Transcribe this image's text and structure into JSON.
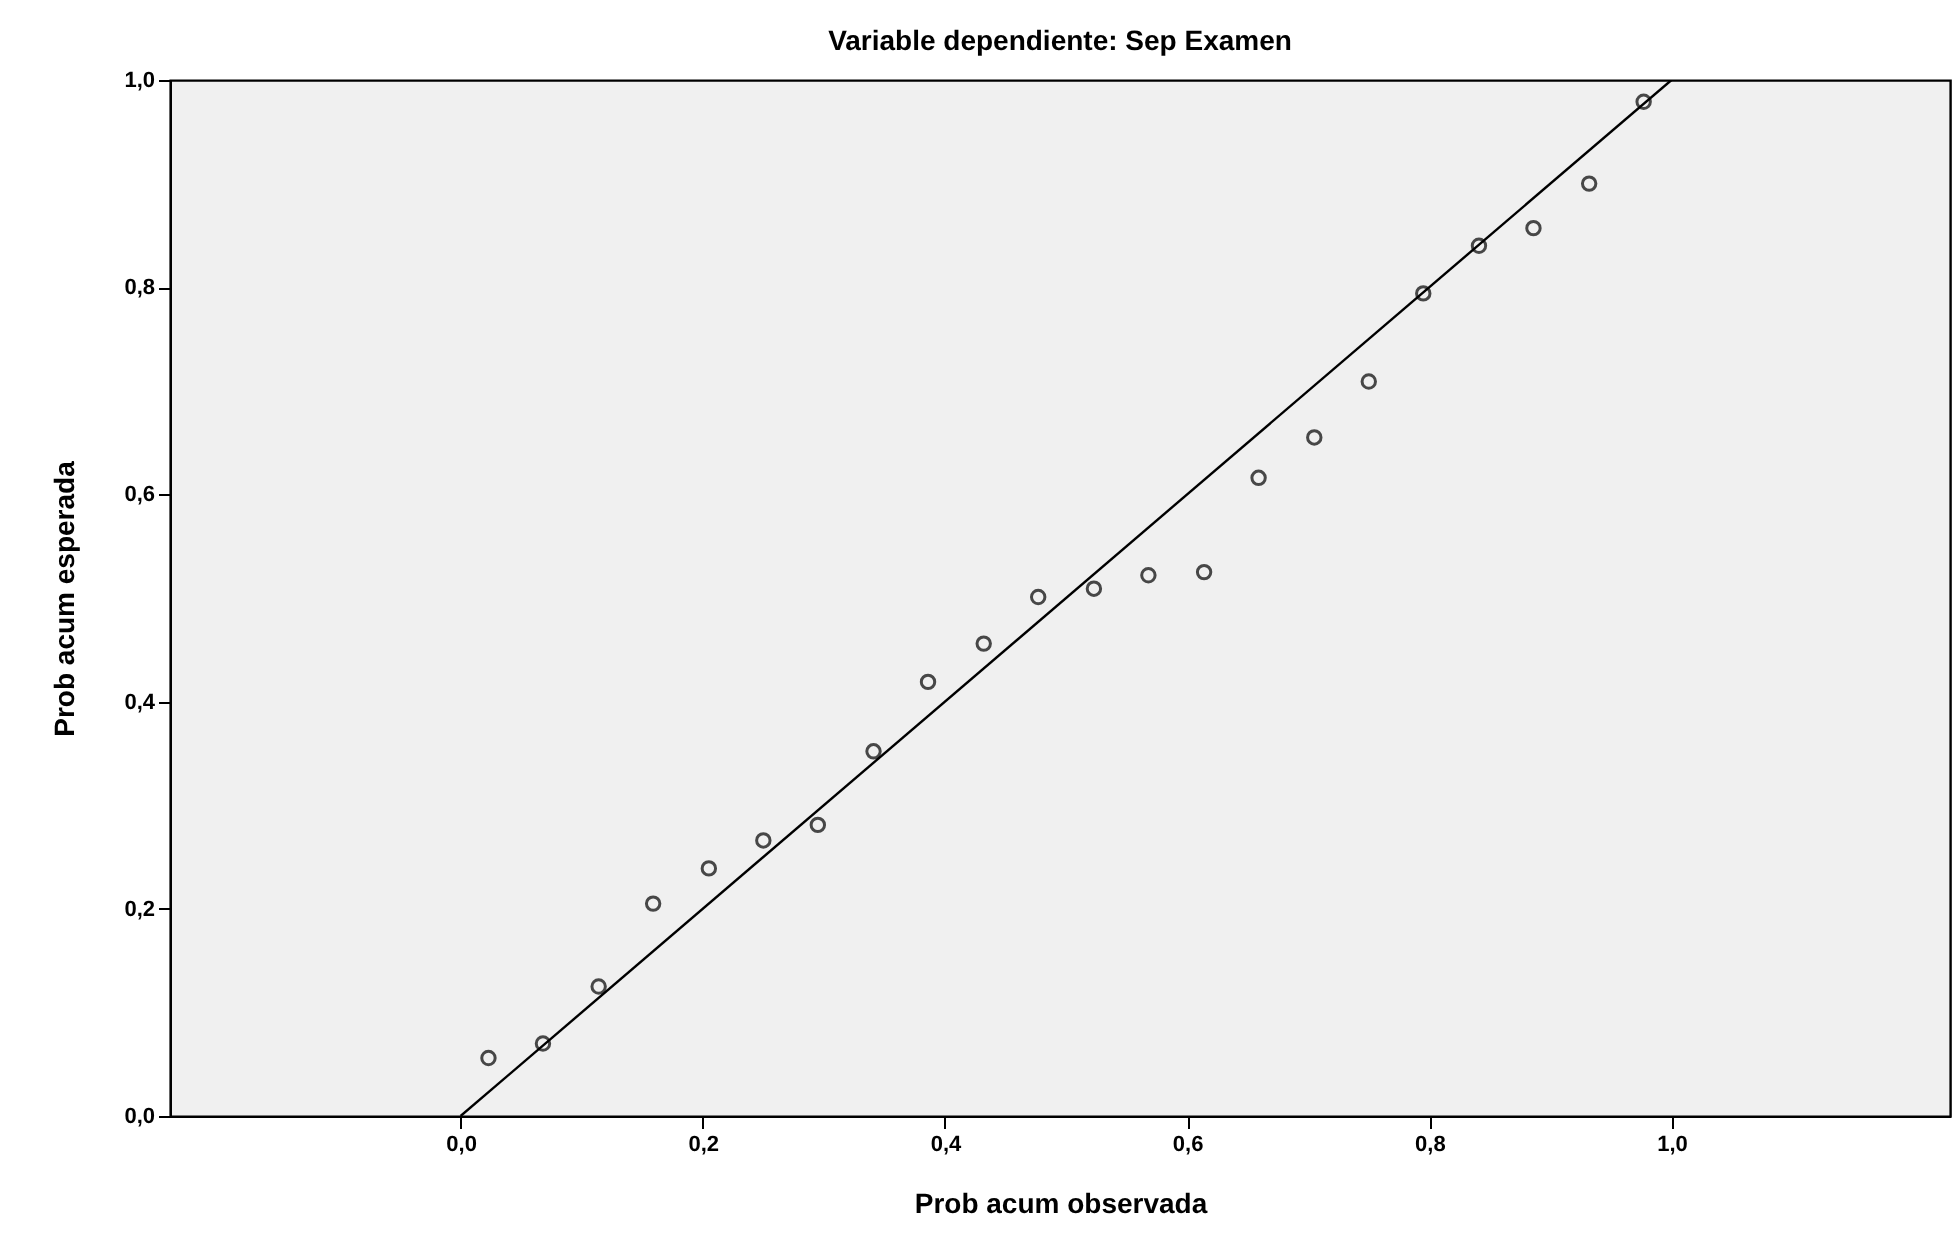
{
  "chart_data": {
    "type": "scatter",
    "title": "Variable dependiente: Sep Examen",
    "xlabel": "Prob acum observada",
    "ylabel": "Prob acum esperada",
    "x": [
      0.023,
      0.068,
      0.114,
      0.159,
      0.205,
      0.25,
      0.295,
      0.341,
      0.386,
      0.432,
      0.477,
      0.523,
      0.568,
      0.614,
      0.659,
      0.705,
      0.75,
      0.795,
      0.841,
      0.886,
      0.932,
      0.977
    ],
    "series": [
      {
        "color": "#000000",
        "marker": "circle",
        "values": [
          0.056,
          0.07,
          0.125,
          0.205,
          0.239,
          0.266,
          0.281,
          0.352,
          0.419,
          0.456,
          0.501,
          0.509,
          0.522,
          0.525,
          0.616,
          0.655,
          0.709,
          0.794,
          0.84,
          0.857,
          0.9,
          0.979
        ]
      },
      {
        "type": "line",
        "color": "#000000",
        "marker": "none",
        "x": [
          0,
          1
        ],
        "values": [
          0,
          1
        ]
      }
    ],
    "xlim": [
      -0.24,
      1.23
    ],
    "ylim": [
      0,
      1
    ],
    "xticks": [
      {
        "value": 0,
        "label": "0,0"
      },
      {
        "value": 0.2,
        "label": "0,2"
      },
      {
        "value": 0.4,
        "label": "0,4"
      },
      {
        "value": 0.6,
        "label": "0,6"
      },
      {
        "value": 0.8,
        "label": "0,8"
      },
      {
        "value": 1,
        "label": "1,0"
      }
    ],
    "yticks": [
      {
        "value": 0,
        "label": "0,0"
      },
      {
        "value": 0.2,
        "label": "0,2"
      },
      {
        "value": 0.4,
        "label": "0,4"
      },
      {
        "value": 0.6,
        "label": "0,6"
      },
      {
        "value": 0.8,
        "label": "0,8"
      },
      {
        "value": 1,
        "label": "1,0"
      }
    ]
  }
}
